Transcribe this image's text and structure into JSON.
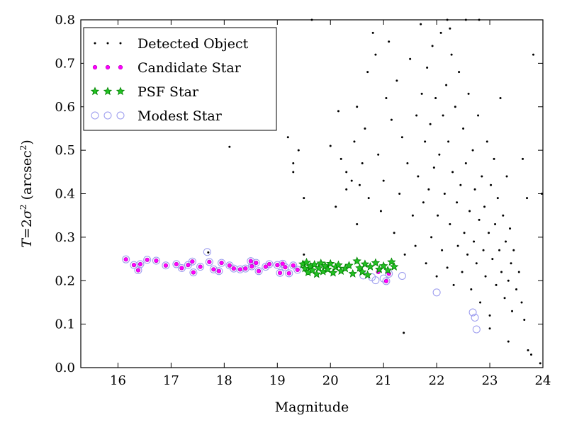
{
  "chart_data": {
    "type": "scatter",
    "xlabel": "Magnitude",
    "ylabel_parts": {
      "var": "T",
      "eq": "=2",
      "sigma": "σ",
      "exp": "2",
      "paren_open": " (arcsec",
      "exp2": "2",
      "paren_close": ")"
    },
    "xlim": [
      15.3,
      24.0
    ],
    "ylim": [
      0.0,
      0.8
    ],
    "xticks": [
      "16",
      "17",
      "18",
      "19",
      "20",
      "21",
      "22",
      "23",
      "24"
    ],
    "yticks": [
      "0.0",
      "0.1",
      "0.2",
      "0.3",
      "0.4",
      "0.5",
      "0.6",
      "0.7",
      "0.8"
    ],
    "legend_position": "top-left",
    "legend": [
      {
        "name": "Detected Object",
        "marker": "dot",
        "color": "#000000"
      },
      {
        "name": "Candidate Star",
        "marker": "circle",
        "color": "#ff00ff"
      },
      {
        "name": "PSF Star",
        "marker": "star",
        "color": "#008000"
      },
      {
        "name": "Modest Star",
        "marker": "open-circle",
        "color": "#9999ee"
      }
    ],
    "series": [
      {
        "name": "Modest Star",
        "points": [
          [
            16.15,
            0.249
          ],
          [
            16.3,
            0.236
          ],
          [
            16.38,
            0.224
          ],
          [
            16.42,
            0.238
          ],
          [
            16.55,
            0.248
          ],
          [
            16.72,
            0.246
          ],
          [
            16.9,
            0.235
          ],
          [
            17.1,
            0.238
          ],
          [
            17.2,
            0.229
          ],
          [
            17.32,
            0.236
          ],
          [
            17.4,
            0.244
          ],
          [
            17.42,
            0.219
          ],
          [
            17.55,
            0.232
          ],
          [
            17.68,
            0.266
          ],
          [
            17.72,
            0.243
          ],
          [
            17.8,
            0.226
          ],
          [
            17.9,
            0.222
          ],
          [
            17.95,
            0.241
          ],
          [
            18.1,
            0.235
          ],
          [
            18.18,
            0.228
          ],
          [
            18.3,
            0.226
          ],
          [
            18.4,
            0.228
          ],
          [
            18.5,
            0.245
          ],
          [
            18.52,
            0.233
          ],
          [
            18.6,
            0.241
          ],
          [
            18.65,
            0.222
          ],
          [
            18.78,
            0.232
          ],
          [
            18.85,
            0.238
          ],
          [
            19.0,
            0.236
          ],
          [
            19.05,
            0.218
          ],
          [
            19.1,
            0.239
          ],
          [
            19.15,
            0.231
          ],
          [
            19.22,
            0.217
          ],
          [
            19.3,
            0.235
          ],
          [
            19.38,
            0.225
          ],
          [
            20.62,
            0.212
          ],
          [
            20.78,
            0.208
          ],
          [
            20.85,
            0.201
          ],
          [
            21.0,
            0.205
          ],
          [
            21.05,
            0.199
          ],
          [
            21.1,
            0.216
          ],
          [
            21.35,
            0.211
          ],
          [
            22.0,
            0.173
          ],
          [
            22.68,
            0.127
          ],
          [
            22.72,
            0.115
          ],
          [
            22.75,
            0.088
          ]
        ]
      },
      {
        "name": "Candidate Star",
        "points": [
          [
            16.15,
            0.249
          ],
          [
            16.3,
            0.236
          ],
          [
            16.38,
            0.224
          ],
          [
            16.42,
            0.238
          ],
          [
            16.55,
            0.248
          ],
          [
            16.72,
            0.246
          ],
          [
            16.9,
            0.235
          ],
          [
            17.1,
            0.238
          ],
          [
            17.2,
            0.229
          ],
          [
            17.32,
            0.236
          ],
          [
            17.4,
            0.244
          ],
          [
            17.42,
            0.219
          ],
          [
            17.55,
            0.232
          ],
          [
            17.72,
            0.243
          ],
          [
            17.8,
            0.226
          ],
          [
            17.9,
            0.222
          ],
          [
            17.95,
            0.241
          ],
          [
            18.1,
            0.235
          ],
          [
            18.18,
            0.228
          ],
          [
            18.3,
            0.226
          ],
          [
            18.4,
            0.228
          ],
          [
            18.5,
            0.245
          ],
          [
            18.52,
            0.233
          ],
          [
            18.6,
            0.241
          ],
          [
            18.65,
            0.222
          ],
          [
            18.78,
            0.232
          ],
          [
            18.85,
            0.238
          ],
          [
            19.0,
            0.236
          ],
          [
            19.05,
            0.218
          ],
          [
            19.1,
            0.239
          ],
          [
            19.15,
            0.231
          ],
          [
            19.22,
            0.217
          ],
          [
            19.3,
            0.235
          ],
          [
            19.38,
            0.225
          ],
          [
            20.9,
            0.22
          ],
          [
            21.05,
            0.199
          ],
          [
            21.1,
            0.216
          ]
        ]
      },
      {
        "name": "PSF Star",
        "points": [
          [
            19.48,
            0.238
          ],
          [
            19.52,
            0.228
          ],
          [
            19.55,
            0.242
          ],
          [
            19.58,
            0.219
          ],
          [
            19.62,
            0.233
          ],
          [
            19.66,
            0.224
          ],
          [
            19.7,
            0.237
          ],
          [
            19.74,
            0.215
          ],
          [
            19.78,
            0.229
          ],
          [
            19.82,
            0.24
          ],
          [
            19.86,
            0.221
          ],
          [
            19.9,
            0.234
          ],
          [
            19.95,
            0.226
          ],
          [
            20.0,
            0.239
          ],
          [
            20.05,
            0.218
          ],
          [
            20.1,
            0.231
          ],
          [
            20.15,
            0.236
          ],
          [
            20.2,
            0.222
          ],
          [
            20.28,
            0.228
          ],
          [
            20.35,
            0.235
          ],
          [
            20.42,
            0.216
          ],
          [
            20.5,
            0.245
          ],
          [
            20.55,
            0.229
          ],
          [
            20.6,
            0.22
          ],
          [
            20.65,
            0.238
          ],
          [
            20.7,
            0.213
          ],
          [
            20.75,
            0.232
          ],
          [
            20.85,
            0.241
          ],
          [
            20.92,
            0.226
          ],
          [
            21.0,
            0.234
          ],
          [
            21.08,
            0.224
          ],
          [
            21.15,
            0.243
          ],
          [
            21.2,
            0.232
          ]
        ]
      },
      {
        "name": "Detected Object",
        "points": [
          [
            17.7,
            0.265
          ],
          [
            18.1,
            0.508
          ],
          [
            19.2,
            0.53
          ],
          [
            19.3,
            0.47
          ],
          [
            19.3,
            0.45
          ],
          [
            19.4,
            0.5
          ],
          [
            19.5,
            0.26
          ],
          [
            19.5,
            0.39
          ],
          [
            19.65,
            0.8
          ],
          [
            20.0,
            0.51
          ],
          [
            20.1,
            0.37
          ],
          [
            20.15,
            0.59
          ],
          [
            20.2,
            0.48
          ],
          [
            20.3,
            0.45
          ],
          [
            20.3,
            0.41
          ],
          [
            20.4,
            0.43
          ],
          [
            20.45,
            0.52
          ],
          [
            20.5,
            0.33
          ],
          [
            20.5,
            0.6
          ],
          [
            20.55,
            0.42
          ],
          [
            20.6,
            0.47
          ],
          [
            20.65,
            0.55
          ],
          [
            20.7,
            0.68
          ],
          [
            20.72,
            0.39
          ],
          [
            20.8,
            0.77
          ],
          [
            20.85,
            0.72
          ],
          [
            20.9,
            0.49
          ],
          [
            20.95,
            0.36
          ],
          [
            21.0,
            0.43
          ],
          [
            21.05,
            0.62
          ],
          [
            21.1,
            0.75
          ],
          [
            21.15,
            0.57
          ],
          [
            21.2,
            0.31
          ],
          [
            21.25,
            0.66
          ],
          [
            21.3,
            0.4
          ],
          [
            21.35,
            0.53
          ],
          [
            21.38,
            0.08
          ],
          [
            21.4,
            0.26
          ],
          [
            21.45,
            0.47
          ],
          [
            21.5,
            0.71
          ],
          [
            21.55,
            0.35
          ],
          [
            21.6,
            0.28
          ],
          [
            21.62,
            0.58
          ],
          [
            21.65,
            0.44
          ],
          [
            21.7,
            0.79
          ],
          [
            21.72,
            0.63
          ],
          [
            21.75,
            0.38
          ],
          [
            21.78,
            0.52
          ],
          [
            21.8,
            0.24
          ],
          [
            21.82,
            0.69
          ],
          [
            21.85,
            0.41
          ],
          [
            21.88,
            0.56
          ],
          [
            21.9,
            0.3
          ],
          [
            21.92,
            0.74
          ],
          [
            21.95,
            0.46
          ],
          [
            21.98,
            0.62
          ],
          [
            22.0,
            0.21
          ],
          [
            22.02,
            0.35
          ],
          [
            22.05,
            0.49
          ],
          [
            22.08,
            0.77
          ],
          [
            22.1,
            0.27
          ],
          [
            22.12,
            0.58
          ],
          [
            22.15,
            0.4
          ],
          [
            22.18,
            0.65
          ],
          [
            22.2,
            0.23
          ],
          [
            22.22,
            0.52
          ],
          [
            22.25,
            0.33
          ],
          [
            22.28,
            0.72
          ],
          [
            22.3,
            0.45
          ],
          [
            22.32,
            0.19
          ],
          [
            22.35,
            0.6
          ],
          [
            22.38,
            0.38
          ],
          [
            22.4,
            0.28
          ],
          [
            22.42,
            0.68
          ],
          [
            22.45,
            0.42
          ],
          [
            22.48,
            0.22
          ],
          [
            22.5,
            0.55
          ],
          [
            22.52,
            0.31
          ],
          [
            22.55,
            0.47
          ],
          [
            22.58,
            0.26
          ],
          [
            22.6,
            0.63
          ],
          [
            22.62,
            0.36
          ],
          [
            22.65,
            0.18
          ],
          [
            22.68,
            0.5
          ],
          [
            22.7,
            0.29
          ],
          [
            22.72,
            0.41
          ],
          [
            22.75,
            0.24
          ],
          [
            22.78,
            0.58
          ],
          [
            22.8,
            0.34
          ],
          [
            22.82,
            0.15
          ],
          [
            22.85,
            0.44
          ],
          [
            22.88,
            0.27
          ],
          [
            22.9,
            0.37
          ],
          [
            22.92,
            0.21
          ],
          [
            22.95,
            0.52
          ],
          [
            22.98,
            0.31
          ],
          [
            23.0,
            0.12
          ],
          [
            23.02,
            0.42
          ],
          [
            23.05,
            0.25
          ],
          [
            23.08,
            0.48
          ],
          [
            23.1,
            0.33
          ],
          [
            23.12,
            0.19
          ],
          [
            23.15,
            0.39
          ],
          [
            23.18,
            0.27
          ],
          [
            23.2,
            0.62
          ],
          [
            23.22,
            0.22
          ],
          [
            23.25,
            0.35
          ],
          [
            23.28,
            0.16
          ],
          [
            23.3,
            0.29
          ],
          [
            23.32,
            0.44
          ],
          [
            23.35,
            0.2
          ],
          [
            23.38,
            0.32
          ],
          [
            23.4,
            0.24
          ],
          [
            23.42,
            0.13
          ],
          [
            23.45,
            0.27
          ],
          [
            23.5,
            0.18
          ],
          [
            23.55,
            0.22
          ],
          [
            23.6,
            0.15
          ],
          [
            23.62,
            0.48
          ],
          [
            23.65,
            0.11
          ],
          [
            23.7,
            0.39
          ],
          [
            23.72,
            0.04
          ],
          [
            23.78,
            0.03
          ],
          [
            23.95,
            0.01
          ],
          [
            23.98,
            0.4
          ],
          [
            23.82,
            0.72
          ],
          [
            23.35,
            0.06
          ],
          [
            23.0,
            0.09
          ],
          [
            22.2,
            0.8
          ],
          [
            22.25,
            0.78
          ],
          [
            22.8,
            0.8
          ],
          [
            22.55,
            0.8
          ]
        ]
      }
    ]
  }
}
